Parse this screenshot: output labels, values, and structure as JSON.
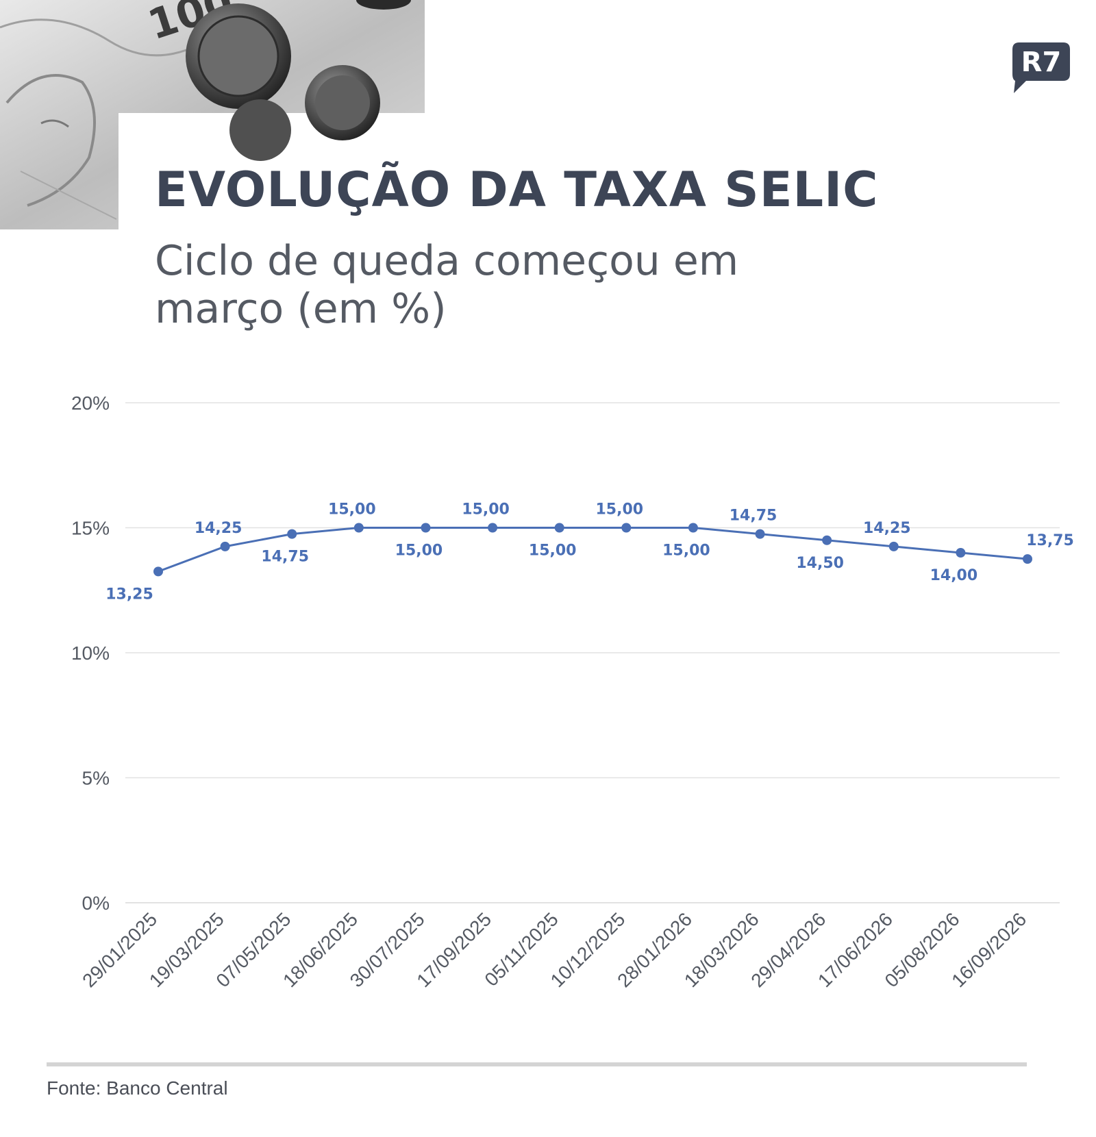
{
  "header": {
    "title": "EVOLUÇÃO DA TAXA SELIC",
    "subtitle_line1": "Ciclo de queda começou em",
    "subtitle_line2": "março (em %)",
    "logo_text": "R7"
  },
  "footer": {
    "source": "Fonte: Banco Central"
  },
  "colors": {
    "series": "#4a6fb5",
    "title": "#3d4556",
    "grid": "#e2e2e2",
    "text": "#555a63"
  },
  "chart_data": {
    "type": "line",
    "categories": [
      "29/01/2025",
      "19/03/2025",
      "07/05/2025",
      "18/06/2025",
      "30/07/2025",
      "17/09/2025",
      "05/11/2025",
      "10/12/2025",
      "28/01/2026",
      "18/03/2026",
      "29/04/2026",
      "17/06/2026",
      "05/08/2026",
      "16/09/2026"
    ],
    "series": [
      {
        "values": [
          13.25,
          14.25,
          14.75,
          15.0,
          15.0,
          15.0,
          15.0,
          15.0,
          15.0,
          14.75,
          14.5,
          14.25,
          14.0,
          13.75
        ],
        "labels": [
          "13,25",
          "14,25",
          "14,75",
          "15,00",
          "15,00",
          "15,00",
          "15,00",
          "15,00",
          "15,00",
          "14,75",
          "14,50",
          "14,25",
          "14,00",
          "13,75"
        ],
        "label_positions": [
          "below",
          "above",
          "below",
          "above",
          "below",
          "above",
          "below",
          "above",
          "below",
          "above",
          "below",
          "above",
          "below",
          "above"
        ]
      }
    ],
    "yticks": [
      0,
      5,
      10,
      15,
      20
    ],
    "ytick_labels": [
      "0%",
      "5%",
      "10%",
      "15%",
      "20%"
    ],
    "ylim": [
      0,
      20
    ],
    "grid": true
  }
}
